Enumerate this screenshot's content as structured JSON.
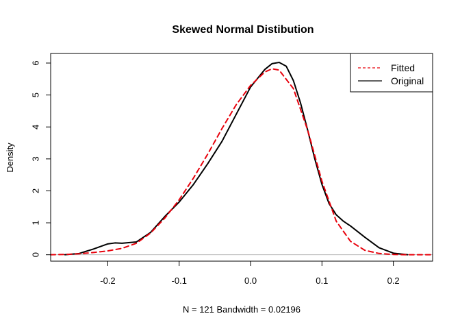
{
  "chart_data": {
    "type": "line",
    "title": "Skewed Normal Distibution",
    "xlabel": "N = 121   Bandwidth = 0.02196",
    "ylabel": "Density",
    "xlim": [
      -0.28,
      0.255
    ],
    "ylim": [
      -0.2,
      6.3
    ],
    "xticks": [
      -0.2,
      -0.1,
      0.0,
      0.1,
      0.2
    ],
    "xtick_labels": [
      "-0.2",
      "-0.1",
      "0.0",
      "0.1",
      "0.2"
    ],
    "yticks": [
      0,
      1,
      2,
      3,
      4,
      5,
      6
    ],
    "ytick_labels": [
      "0",
      "1",
      "2",
      "3",
      "4",
      "5",
      "6"
    ],
    "baseline": 0,
    "legend": {
      "position": "top-right",
      "entries": [
        {
          "label": "Fitted",
          "color": "#e8000b",
          "dash": "dashed"
        },
        {
          "label": "Original",
          "color": "#000000",
          "dash": "solid"
        }
      ]
    },
    "series": [
      {
        "name": "Fitted",
        "color": "#e8000b",
        "style": "dashed",
        "x": [
          -0.28,
          -0.26,
          -0.24,
          -0.22,
          -0.2,
          -0.18,
          -0.16,
          -0.14,
          -0.12,
          -0.1,
          -0.08,
          -0.06,
          -0.04,
          -0.02,
          0.0,
          0.02,
          0.03,
          0.04,
          0.06,
          0.08,
          0.1,
          0.12,
          0.14,
          0.16,
          0.18,
          0.2,
          0.22,
          0.24,
          0.255
        ],
        "y": [
          0.0,
          0.01,
          0.03,
          0.07,
          0.12,
          0.2,
          0.36,
          0.68,
          1.15,
          1.72,
          2.4,
          3.15,
          3.95,
          4.7,
          5.3,
          5.72,
          5.82,
          5.78,
          5.2,
          3.9,
          2.3,
          1.05,
          0.42,
          0.14,
          0.04,
          0.01,
          0.0,
          0.0,
          0.0
        ]
      },
      {
        "name": "Original",
        "color": "#000000",
        "style": "solid",
        "x": [
          -0.26,
          -0.24,
          -0.22,
          -0.2,
          -0.19,
          -0.18,
          -0.16,
          -0.14,
          -0.12,
          -0.1,
          -0.08,
          -0.06,
          -0.04,
          -0.02,
          0.0,
          0.02,
          0.03,
          0.04,
          0.05,
          0.06,
          0.07,
          0.08,
          0.09,
          0.1,
          0.11,
          0.12,
          0.13,
          0.14,
          0.16,
          0.18,
          0.2,
          0.22
        ],
        "y": [
          0.0,
          0.04,
          0.18,
          0.34,
          0.37,
          0.36,
          0.4,
          0.7,
          1.2,
          1.65,
          2.2,
          2.85,
          3.55,
          4.4,
          5.25,
          5.8,
          5.98,
          6.02,
          5.9,
          5.45,
          4.75,
          3.9,
          3.0,
          2.2,
          1.6,
          1.25,
          1.05,
          0.9,
          0.55,
          0.22,
          0.05,
          0.0
        ]
      }
    ]
  }
}
